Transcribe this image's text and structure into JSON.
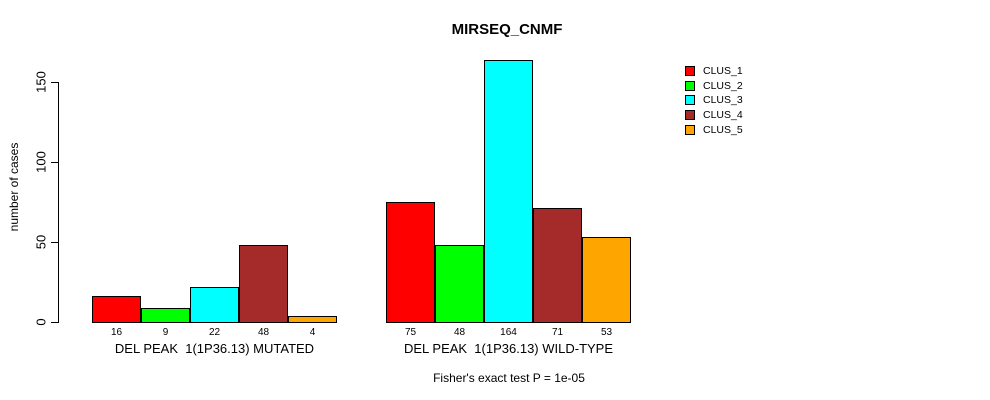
{
  "title": "MIRSEQ_CNMF",
  "caption": "Fisher's exact test P = 1e-05",
  "y_axis": {
    "label": "number of cases",
    "ticks": [
      0,
      50,
      100,
      150
    ]
  },
  "chart_data": {
    "type": "bar",
    "title": "MIRSEQ_CNMF",
    "xlabel": "",
    "ylabel": "number of cases",
    "ylim": [
      0,
      170
    ],
    "yticks": [
      0,
      50,
      100,
      150
    ],
    "grid": false,
    "legend_position": "top-right",
    "bar_value_labels_shown": true,
    "annotation": "Fisher's exact test P = 1e-05",
    "categories": [
      "DEL PEAK  1(1P36.13) MUTATED",
      "DEL PEAK  1(1P36.13) WILD-TYPE"
    ],
    "series": [
      {
        "name": "CLUS_1",
        "color": "#FF0000",
        "values": [
          16,
          75
        ]
      },
      {
        "name": "CLUS_2",
        "color": "#00FF00",
        "values": [
          9,
          48
        ]
      },
      {
        "name": "CLUS_3",
        "color": "#00FFFF",
        "values": [
          22,
          164
        ]
      },
      {
        "name": "CLUS_4",
        "color": "#A52A2A",
        "values": [
          48,
          71
        ]
      },
      {
        "name": "CLUS_5",
        "color": "#FFA500",
        "values": [
          4,
          53
        ]
      }
    ]
  }
}
